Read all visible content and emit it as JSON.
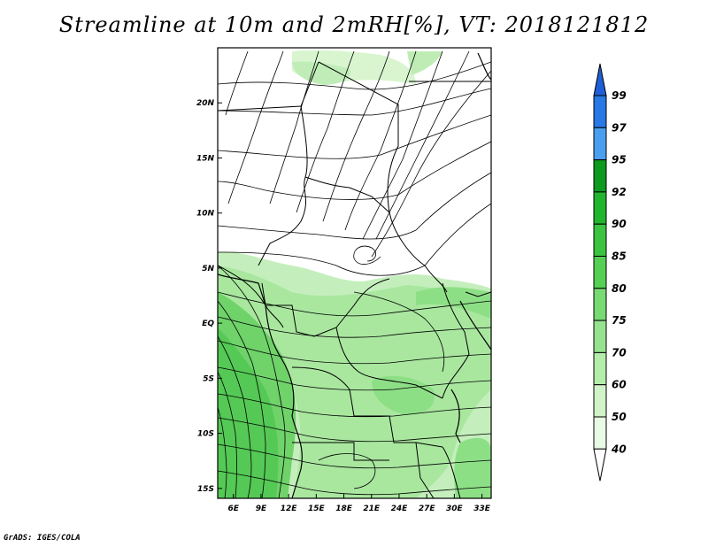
{
  "title": "Streamline at 10m and 2mRH[%], VT: 2018121812",
  "footer": "GrADS: IGES/COLA",
  "map": {
    "lat_labels": [
      "20N",
      "15N",
      "10N",
      "5N",
      "EQ",
      "5S",
      "10S",
      "15S"
    ],
    "lat_values": [
      20,
      15,
      10,
      5,
      0,
      -5,
      -10,
      -15
    ],
    "lon_labels": [
      "6E",
      "9E",
      "12E",
      "15E",
      "18E",
      "21E",
      "24E",
      "27E",
      "30E",
      "33E"
    ],
    "lon_values": [
      6,
      9,
      12,
      15,
      18,
      21,
      24,
      27,
      30,
      33
    ],
    "lon_range": [
      4.3,
      34.0
    ],
    "lat_range": [
      -15.9,
      25.0
    ]
  },
  "colorbar": {
    "levels": [
      "99",
      "97",
      "95",
      "92",
      "90",
      "85",
      "80",
      "75",
      "70",
      "60",
      "50",
      "40"
    ],
    "colors": [
      "#1e5fd6",
      "#2878e6",
      "#4a9ef0",
      "#0e9a1e",
      "#21b52e",
      "#3ac440",
      "#55d055",
      "#78da73",
      "#96e38f",
      "#b4ecaa",
      "#d0f3c8",
      "#e8fbe4"
    ]
  }
}
